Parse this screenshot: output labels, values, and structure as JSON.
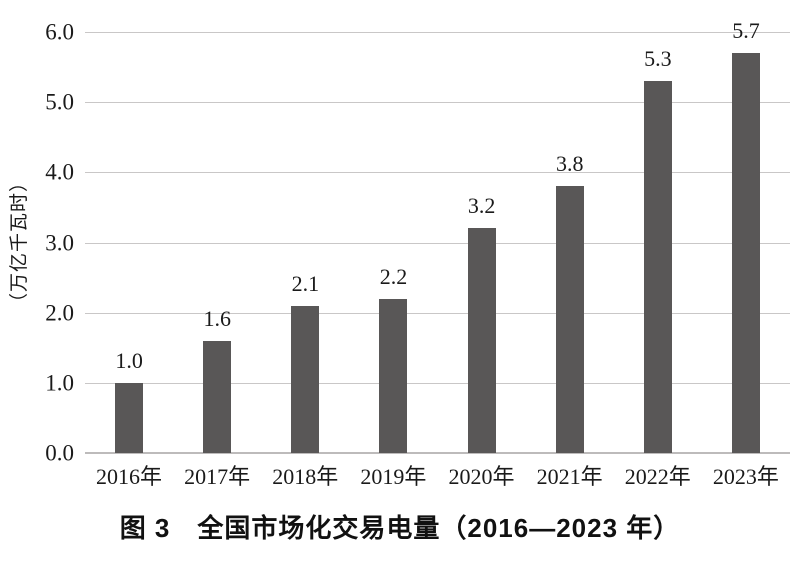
{
  "figure": {
    "caption": "图 3　全国市场化交易电量（2016—2023 年）"
  },
  "chart_data": {
    "type": "bar",
    "title": "图 3　全国市场化交易电量（2016—2023 年）",
    "categories": [
      "2016年",
      "2017年",
      "2018年",
      "2019年",
      "2020年",
      "2021年",
      "2022年",
      "2023年"
    ],
    "values": [
      1.0,
      1.6,
      2.1,
      2.2,
      3.2,
      3.8,
      5.3,
      5.7
    ],
    "data_labels": [
      "1.0",
      "1.6",
      "2.1",
      "2.2",
      "3.2",
      "3.8",
      "5.3",
      "5.7"
    ],
    "xlabel": "",
    "ylabel": "（万亿千瓦时）",
    "ylim": [
      0,
      6
    ],
    "ytick_labels": [
      "6.0",
      "5.0",
      "4.0",
      "3.0",
      "2.0",
      "1.0",
      "0.0"
    ],
    "ytick_values": [
      6,
      5,
      4,
      3,
      2,
      1,
      0
    ],
    "grid": true,
    "legend": false,
    "bar_color": "#595757",
    "gridline_color": "#c9c7c7",
    "baseline_color": "#bdbbbb",
    "text_color": "#1a1a1a"
  }
}
